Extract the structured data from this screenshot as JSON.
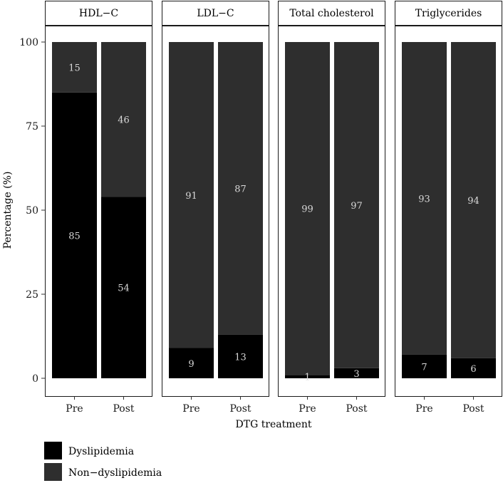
{
  "chart_data": {
    "type": "bar",
    "stacked": true,
    "panels": [
      {
        "title": "HDL−C",
        "categories": [
          "Pre",
          "Post"
        ],
        "series": [
          {
            "name": "Dyslipidemia",
            "values": [
              85,
              54
            ]
          },
          {
            "name": "Non−dyslipidemia",
            "values": [
              15,
              46
            ]
          }
        ]
      },
      {
        "title": "LDL−C",
        "categories": [
          "Pre",
          "Post"
        ],
        "series": [
          {
            "name": "Dyslipidemia",
            "values": [
              9,
              13
            ]
          },
          {
            "name": "Non−dyslipidemia",
            "values": [
              91,
              87
            ]
          }
        ]
      },
      {
        "title": "Total cholesterol",
        "categories": [
          "Pre",
          "Post"
        ],
        "series": [
          {
            "name": "Dyslipidemia",
            "values": [
              1,
              3
            ]
          },
          {
            "name": "Non−dyslipidemia",
            "values": [
              99,
              97
            ]
          }
        ]
      },
      {
        "title": "Triglycerides",
        "categories": [
          "Pre",
          "Post"
        ],
        "series": [
          {
            "name": "Dyslipidemia",
            "values": [
              7,
              6
            ]
          },
          {
            "name": "Non−dyslipidemia",
            "values": [
              93,
              94
            ]
          }
        ]
      }
    ],
    "xlabel": "DTG treatment",
    "ylabel": "Percentage (%)",
    "ylim": [
      0,
      100
    ],
    "yticks": [
      0,
      25,
      50,
      75,
      100
    ],
    "grid": false,
    "legend": {
      "position": "bottom-left",
      "entries": [
        {
          "name": "Dyslipidemia",
          "color": "#000000"
        },
        {
          "name": "Non−dyslipidemia",
          "color": "#2e2e2e"
        }
      ]
    },
    "colors": {
      "Dyslipidemia": "#000000",
      "Non−dyslipidemia": "#2e2e2e"
    }
  }
}
